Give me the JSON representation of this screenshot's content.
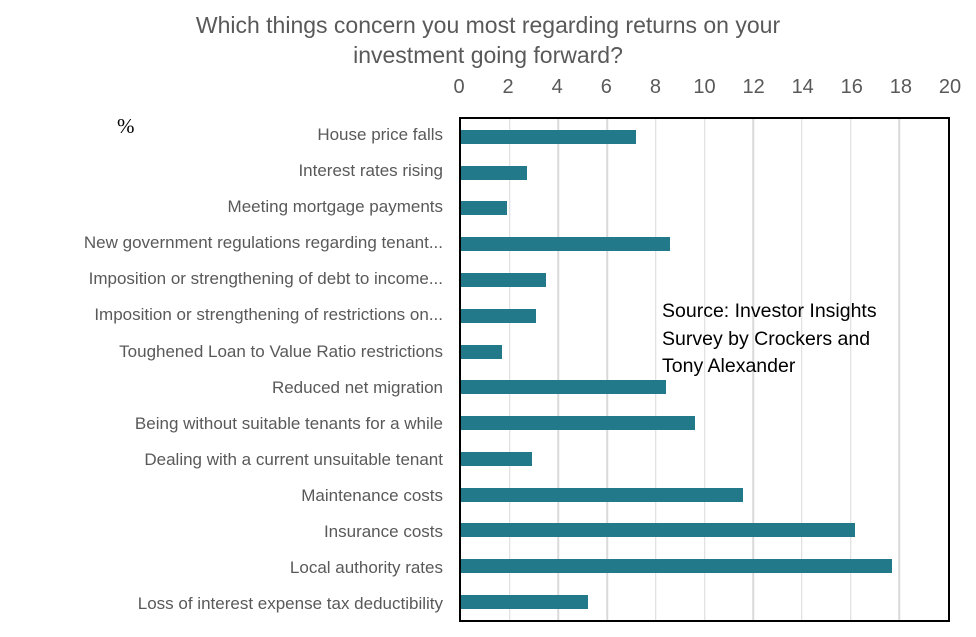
{
  "title": "Which things concern you most regarding returns on your investment going forward?",
  "percent_label": "%",
  "source_note": {
    "lines": [
      "Source: Investor Insights",
      "Survey by Crockers and",
      "Tony Alexander"
    ],
    "full_text": "Source: Investor Insights Survey by Crockers and Tony Alexander"
  },
  "colors": {
    "bar": "#21798A",
    "axis_text": "#595959",
    "gridline": "#D9D9D9",
    "plot_border": "#000000",
    "source_text": "#000000"
  },
  "chart_data": {
    "type": "bar",
    "orientation": "horizontal",
    "title": "Which things concern you most regarding returns on your investment going forward?",
    "xlabel": "%",
    "ylabel": "",
    "xlim": [
      0,
      20
    ],
    "x_ticks": [
      0,
      2,
      4,
      6,
      8,
      10,
      12,
      14,
      16,
      18,
      20
    ],
    "grid": true,
    "legend": false,
    "categories": [
      "House price falls",
      "Interest rates rising",
      "Meeting mortgage payments",
      "New government regulations regarding tenant...",
      "Imposition or strengthening of debt to income...",
      "Imposition or strengthening of restrictions on...",
      "Toughened Loan to Value Ratio restrictions",
      "Reduced net migration",
      "Being without suitable tenants for a while",
      "Dealing with a current unsuitable tenant",
      "Maintenance costs",
      "Insurance costs",
      "Local authority rates",
      "Loss of interest expense tax deductibility"
    ],
    "values": [
      7.2,
      2.7,
      1.9,
      8.6,
      3.5,
      3.1,
      1.7,
      8.4,
      9.6,
      2.9,
      11.6,
      16.2,
      17.7,
      5.2
    ],
    "annotation": "Source: Investor Insights Survey by Crockers and Tony Alexander"
  }
}
